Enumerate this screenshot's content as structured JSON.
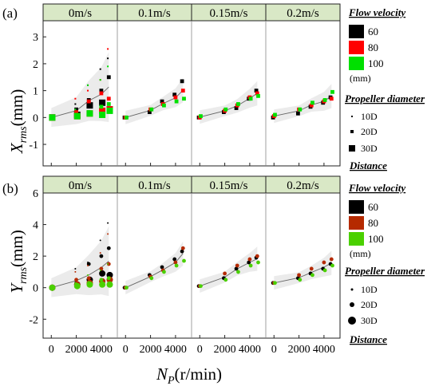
{
  "figure": {
    "xlabel_main": "N",
    "xlabel_sub": "P",
    "xlabel_unit": "(r/min)",
    "x_ticks": [
      "0",
      "2000",
      "4000"
    ],
    "velocities": [
      "0m/s",
      "0.1m/s",
      "0.15m/s",
      "0.2m/s"
    ]
  },
  "panel_a": {
    "tag": "(a)",
    "ylabel_main": "X",
    "ylabel_sub": "rms",
    "ylabel_unit": "(mm)",
    "y_ticks": [
      "-1",
      "0",
      "1",
      "2",
      "3"
    ]
  },
  "panel_b": {
    "tag": "(b)",
    "ylabel_main": "Y",
    "ylabel_sub": "rms",
    "ylabel_unit": "(mm)",
    "y_ticks": [
      "-2",
      "0",
      "2",
      "4",
      "6"
    ]
  },
  "legend_a": {
    "title": "Flow velocity",
    "items": [
      {
        "label": "60",
        "color": "#000000"
      },
      {
        "label": "80",
        "color": "#ff0000"
      },
      {
        "label": "100",
        "color": "#00e000"
      }
    ],
    "unit": "(mm)",
    "diam_title": "Propeller diameter",
    "diam_items": [
      "10D",
      "20D",
      "30D"
    ],
    "distance": "Distance"
  },
  "legend_b": {
    "title": "Flow velocity",
    "items": [
      {
        "label": "60",
        "color": "#000000"
      },
      {
        "label": "80",
        "color": "#b52a00"
      },
      {
        "label": "100",
        "color": "#4ad000"
      }
    ],
    "unit": "(mm)",
    "diam_title": "Propeller diameter",
    "diam_items": [
      "10D",
      "20D",
      "30D"
    ],
    "distance": "Distance"
  },
  "chart_data": [
    {
      "type": "scatter",
      "title": "(a)",
      "xlabel": "N_P (r/min)",
      "ylabel": "X_rms (mm)",
      "ylim": [
        -1.8,
        3.6
      ],
      "xlim": [
        -400,
        4900
      ],
      "facets": [
        "0m/s",
        "0.1m/s",
        "0.15m/s",
        "0.2m/s"
      ],
      "x": [
        0,
        2000,
        3000,
        4000,
        4600
      ],
      "series": [
        {
          "name": "0m/s 60 10D",
          "values": [
            0,
            0.5,
            1.2,
            1.8,
            2.2
          ]
        },
        {
          "name": "0m/s 60 20D",
          "values": [
            0,
            0.3,
            0.65,
            1.0,
            1.5
          ]
        },
        {
          "name": "0m/s 60 30D",
          "values": [
            0,
            0.1,
            0.45,
            0.55,
            0.3
          ]
        },
        {
          "name": "0m/s 80 10D",
          "values": [
            0,
            0.7,
            1.0,
            1.4,
            2.55
          ]
        },
        {
          "name": "0m/s 80 20D",
          "values": [
            0,
            0.2,
            0.6,
            0.9,
            0.7
          ]
        },
        {
          "name": "0m/s 80 30D",
          "values": [
            0,
            0.05,
            0.15,
            0.25,
            0.3
          ]
        },
        {
          "name": "0m/s 100 10D",
          "values": [
            0,
            0.3,
            1.2,
            1.4,
            1.9
          ]
        },
        {
          "name": "0m/s 100 20D",
          "values": [
            0,
            0.1,
            0.2,
            0.4,
            0.5
          ]
        },
        {
          "name": "0m/s 100 30D",
          "values": [
            0,
            0.05,
            0.15,
            0.1,
            0.25
          ]
        },
        {
          "name": "0.1m/s 60",
          "values": [
            0,
            0.2,
            0.6,
            0.85,
            1.35
          ]
        },
        {
          "name": "0.1m/s 80",
          "values": [
            0,
            0.3,
            0.5,
            0.75,
            1.0
          ]
        },
        {
          "name": "0.1m/s 100",
          "values": [
            0,
            0.3,
            0.45,
            0.6,
            0.7
          ]
        },
        {
          "name": "0.15m/s 60",
          "values": [
            0,
            0.2,
            0.35,
            0.7,
            1.0
          ]
        },
        {
          "name": "0.15m/s 80",
          "values": [
            0,
            0.25,
            0.45,
            0.75,
            0.9
          ]
        },
        {
          "name": "0.15m/s 100",
          "values": [
            0.05,
            0.3,
            0.5,
            0.7,
            0.8
          ]
        },
        {
          "name": "0.2m/s 60",
          "values": [
            0,
            0.15,
            0.4,
            0.55,
            0.75
          ]
        },
        {
          "name": "0.2m/s 80",
          "values": [
            0.05,
            0.3,
            0.45,
            0.6,
            0.7
          ]
        },
        {
          "name": "0.2m/s 100",
          "values": [
            0.1,
            0.3,
            0.55,
            0.65,
            0.95
          ]
        }
      ]
    },
    {
      "type": "scatter",
      "title": "(b)",
      "xlabel": "N_P (r/min)",
      "ylabel": "Y_rms (mm)",
      "ylim": [
        -3.2,
        6.0
      ],
      "xlim": [
        -400,
        4900
      ],
      "facets": [
        "0m/s",
        "0.1m/s",
        "0.15m/s",
        "0.2m/s"
      ],
      "x": [
        0,
        2000,
        3000,
        4000,
        4600
      ],
      "series": [
        {
          "name": "0m/s 60 10D",
          "values": [
            0,
            1.2,
            1.6,
            3.0,
            4.1
          ]
        },
        {
          "name": "0m/s 60 20D",
          "values": [
            0,
            0.3,
            1.5,
            2.0,
            2.5
          ]
        },
        {
          "name": "0m/s 60 30D",
          "values": [
            0,
            0.2,
            0.5,
            0.9,
            0.8
          ]
        },
        {
          "name": "0m/s 80 10D",
          "values": [
            0,
            1.0,
            1.4,
            2.2,
            3.4
          ]
        },
        {
          "name": "0m/s 80 20D",
          "values": [
            0,
            0.5,
            0.6,
            1.2,
            1.5
          ]
        },
        {
          "name": "0m/s 80 30D",
          "values": [
            0,
            0.2,
            0.3,
            0.4,
            0.5
          ]
        },
        {
          "name": "0m/s 100 10D",
          "values": [
            0,
            0.3,
            0.8,
            1.1,
            1.5
          ]
        },
        {
          "name": "0m/s 100 20D",
          "values": [
            0,
            0.2,
            0.3,
            0.5,
            0.6
          ]
        },
        {
          "name": "0m/s 100 30D",
          "values": [
            0,
            0.1,
            0.2,
            0.2,
            0.2
          ]
        },
        {
          "name": "0.1m/s 60",
          "values": [
            0,
            0.8,
            1.3,
            1.8,
            2.3
          ]
        },
        {
          "name": "0.1m/s 80",
          "values": [
            0,
            0.7,
            1.1,
            1.6,
            2.5
          ]
        },
        {
          "name": "0.1m/s 100",
          "values": [
            0,
            0.6,
            1.0,
            1.4,
            1.7
          ]
        },
        {
          "name": "0.15m/s 60",
          "values": [
            0.1,
            0.6,
            1.2,
            1.6,
            1.9
          ]
        },
        {
          "name": "0.15m/s 80",
          "values": [
            0.1,
            0.9,
            1.4,
            1.8,
            2.0
          ]
        },
        {
          "name": "0.15m/s 100",
          "values": [
            0.1,
            0.5,
            1.0,
            1.4,
            1.6
          ]
        },
        {
          "name": "0.2m/s 60",
          "values": [
            0.3,
            0.6,
            0.9,
            1.2,
            1.5
          ]
        },
        {
          "name": "0.2m/s 80",
          "values": [
            0.3,
            0.8,
            1.2,
            1.6,
            1.8
          ]
        },
        {
          "name": "0.2m/s 100",
          "values": [
            0.3,
            0.5,
            0.8,
            1.1,
            1.4
          ]
        }
      ]
    }
  ]
}
